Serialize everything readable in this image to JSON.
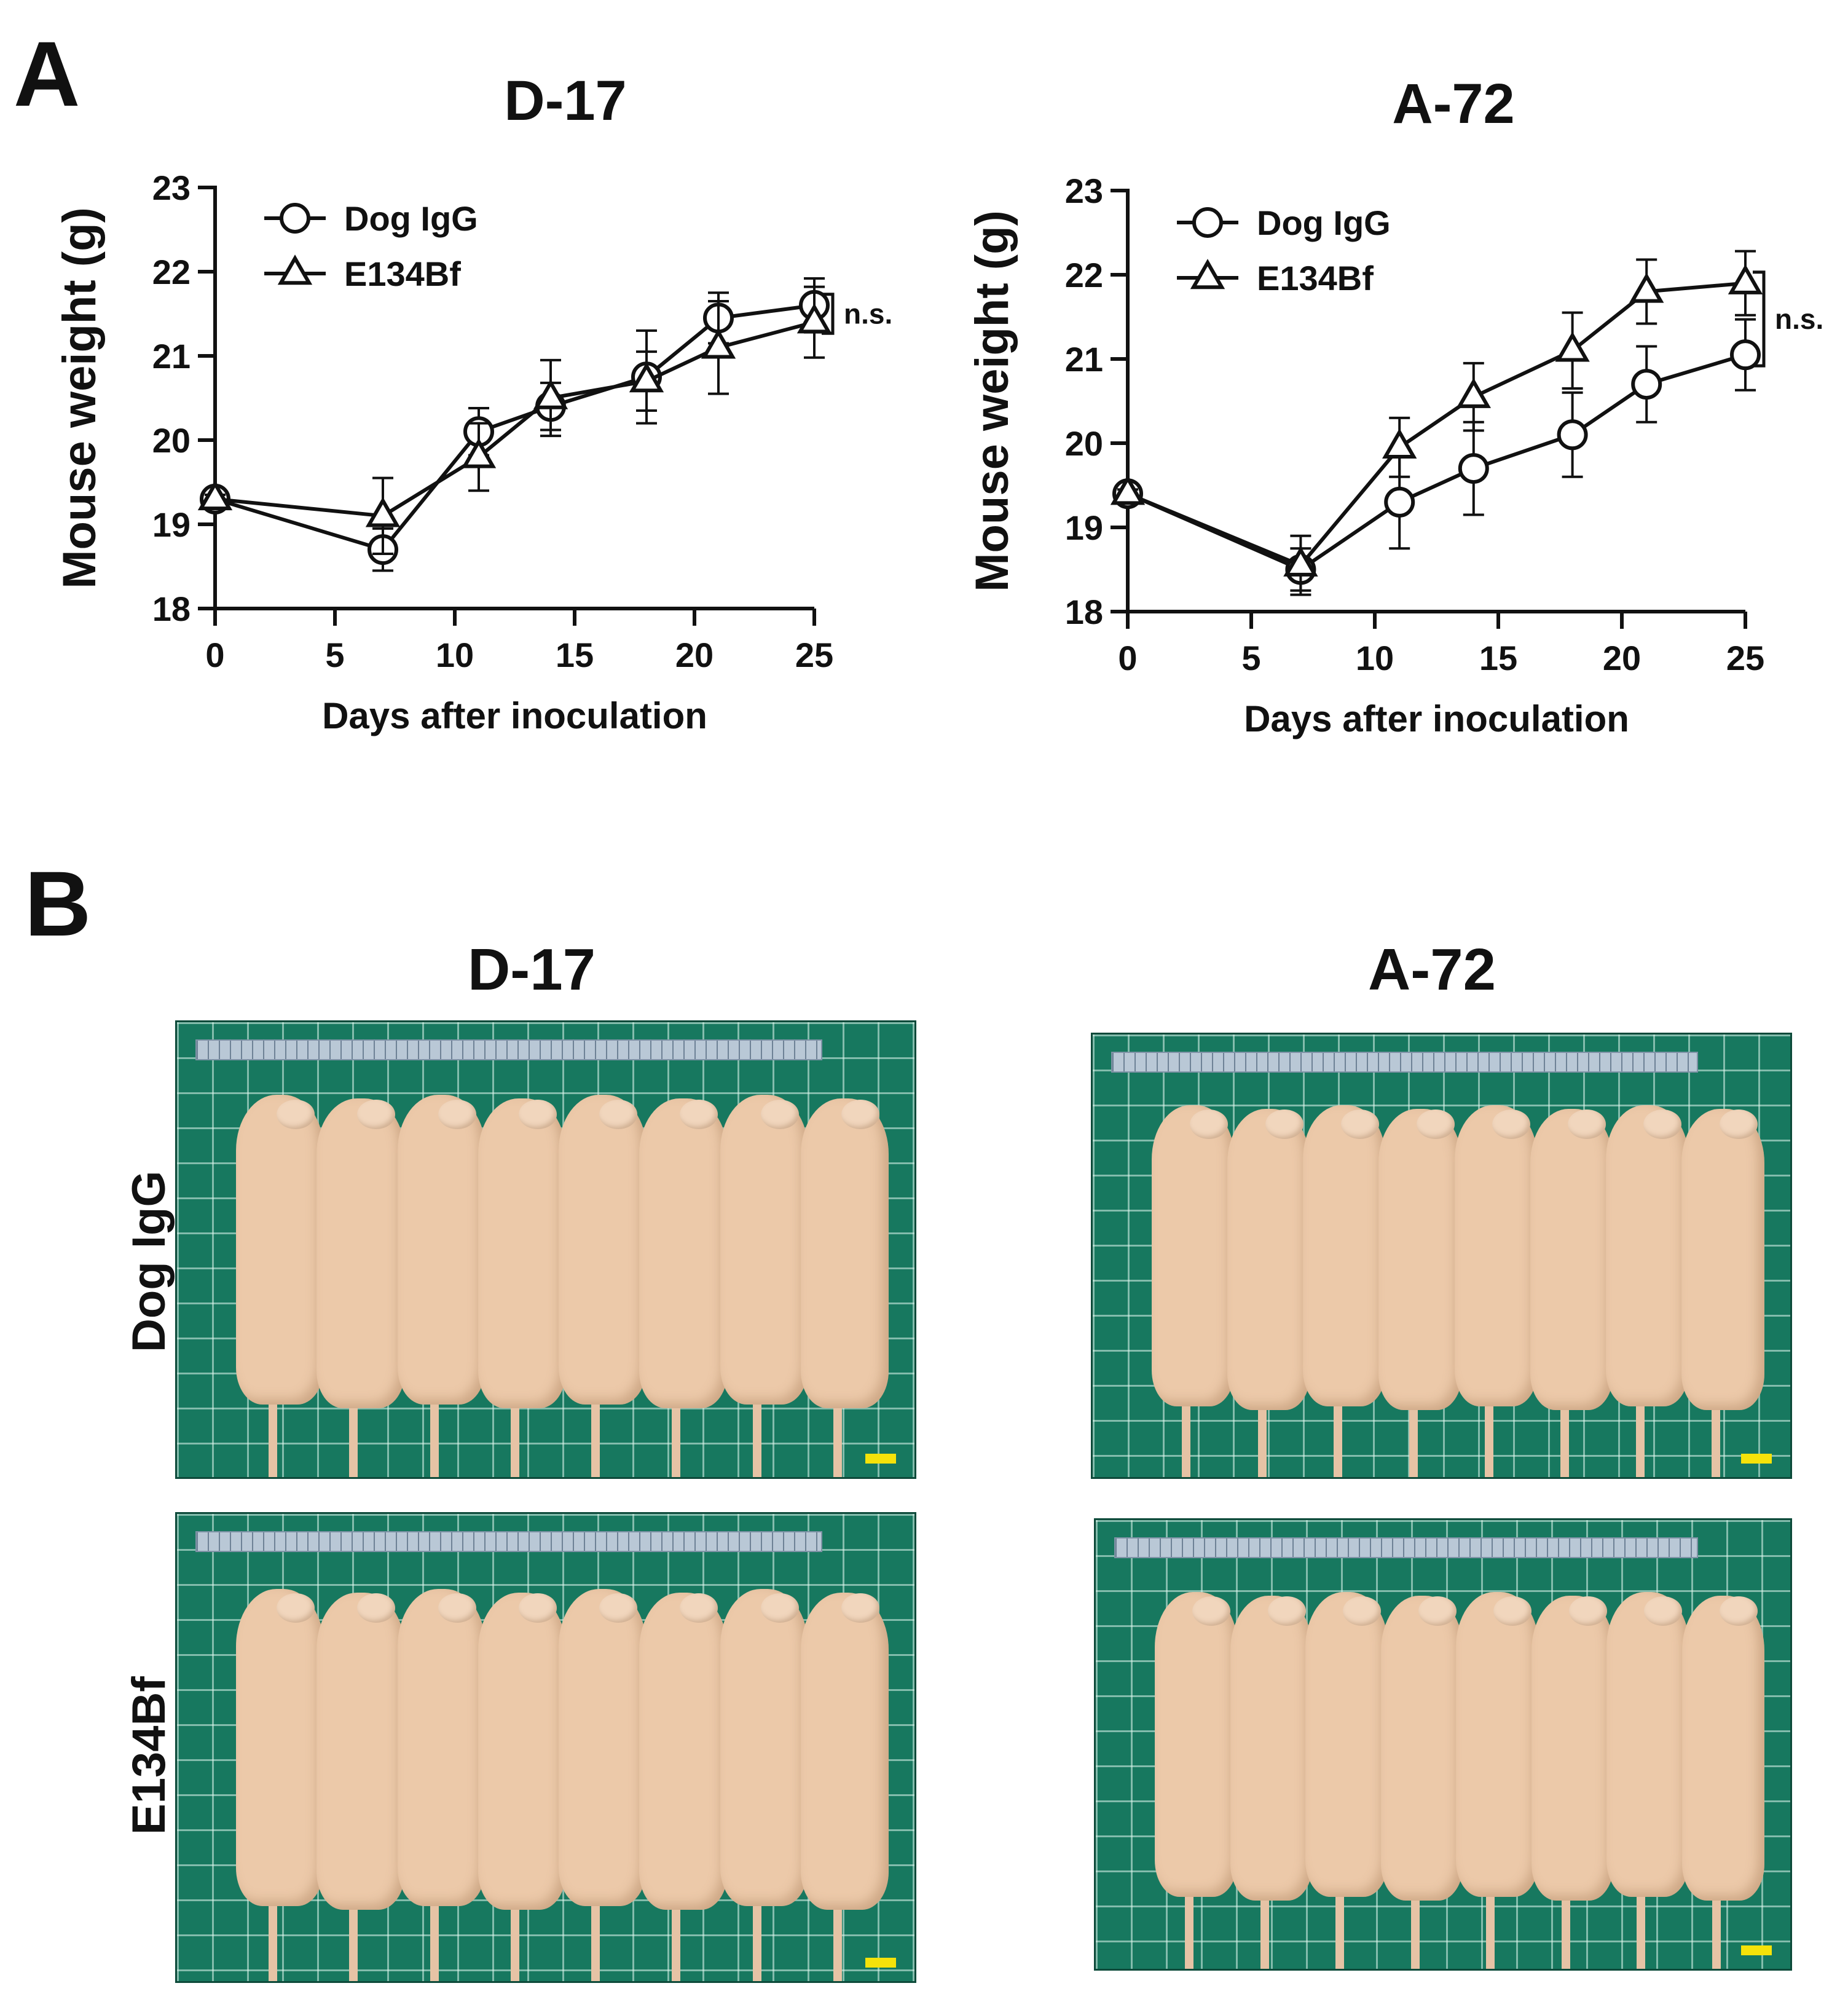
{
  "panels": {
    "a": "A",
    "b": "B"
  },
  "chart_data": [
    {
      "id": "D-17",
      "type": "line",
      "title": "D-17",
      "xlabel": "Days after inoculation",
      "ylabel": "Mouse weight (g)",
      "xlim": [
        0,
        25
      ],
      "ylim": [
        18,
        23
      ],
      "xticks": [
        0,
        5,
        10,
        15,
        20,
        25
      ],
      "yticks": [
        18,
        19,
        20,
        21,
        22,
        23
      ],
      "annotation": "n.s.",
      "series": [
        {
          "name": "Dog IgG",
          "marker": "circle",
          "x": [
            0,
            7,
            11,
            14,
            18,
            21,
            25
          ],
          "y": [
            19.3,
            18.7,
            20.1,
            20.4,
            20.75,
            21.45,
            21.6
          ],
          "err": [
            0.05,
            0.25,
            0.28,
            0.28,
            0.55,
            0.3,
            0.32
          ]
        },
        {
          "name": "E134Bf",
          "marker": "triangle",
          "x": [
            0,
            7,
            11,
            14,
            18,
            21,
            25
          ],
          "y": [
            19.3,
            19.1,
            19.8,
            20.5,
            20.7,
            21.1,
            21.4
          ],
          "err": [
            0.05,
            0.45,
            0.4,
            0.45,
            0.35,
            0.55,
            0.42
          ]
        }
      ]
    },
    {
      "id": "A-72",
      "type": "line",
      "title": "A-72",
      "xlabel": "Days after inoculation",
      "ylabel": "Mouse weight (g)",
      "xlim": [
        0,
        25
      ],
      "ylim": [
        18,
        23
      ],
      "xticks": [
        0,
        5,
        10,
        15,
        20,
        25
      ],
      "yticks": [
        18,
        19,
        20,
        21,
        22,
        23
      ],
      "annotation": "n.s.",
      "series": [
        {
          "name": "Dog IgG",
          "marker": "circle",
          "x": [
            0,
            7,
            11,
            14,
            18,
            21,
            25
          ],
          "y": [
            19.4,
            18.5,
            19.3,
            19.7,
            20.1,
            20.7,
            21.05
          ],
          "err": [
            0.05,
            0.25,
            0.55,
            0.55,
            0.5,
            0.45,
            0.42
          ]
        },
        {
          "name": "E134Bf",
          "marker": "triangle",
          "x": [
            0,
            7,
            11,
            14,
            18,
            21,
            25
          ],
          "y": [
            19.4,
            18.55,
            19.95,
            20.55,
            21.1,
            21.8,
            21.9
          ],
          "err": [
            0.05,
            0.35,
            0.35,
            0.4,
            0.45,
            0.38,
            0.38
          ]
        }
      ]
    }
  ],
  "photos": {
    "titles": [
      "D-17",
      "A-72"
    ],
    "rows": [
      "Dog IgG",
      "E134Bf"
    ]
  }
}
